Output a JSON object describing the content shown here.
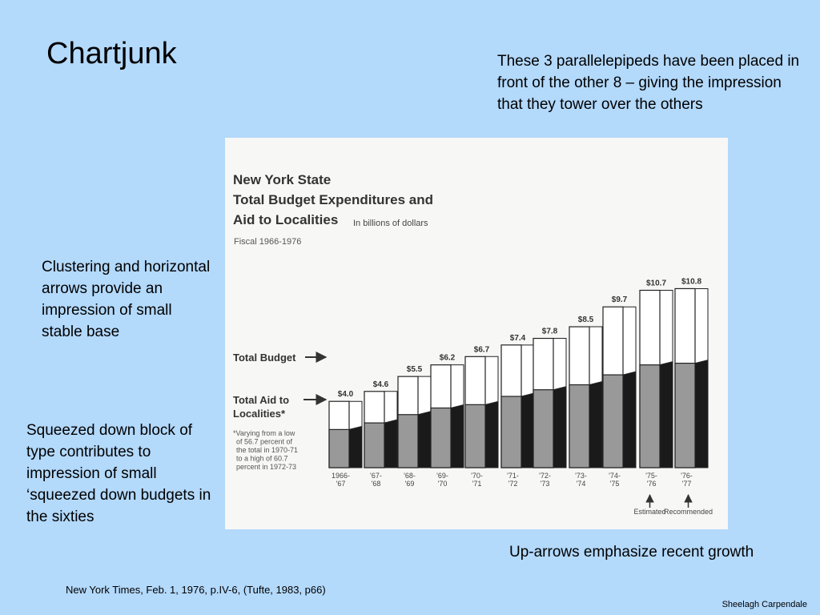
{
  "slide": {
    "title": "Chartjunk",
    "note_top": "These 3 parallelepipeds have been placed in front of the other 8 – giving the impression that they tower over the others",
    "note_left": "Clustering and horizontal arrows provide an impression of small stable base",
    "note_bottom_left": "Squeezed down block of type contributes to impression of small ‘squeezed down budgets in the sixties",
    "note_arrows": "Up-arrows emphasize recent growth",
    "citation": "New York Times, Feb. 1, 1976, p.IV-6, (Tufte, 1983, p66)",
    "author": "Sheelagh Carpendale"
  },
  "chart_data": {
    "type": "bar",
    "title_lines": [
      "New York State",
      "Total Budget Expenditures and",
      "Aid to Localities"
    ],
    "unit": "In billions of dollars",
    "subtitle": "Fiscal 1966-1976",
    "series_labels": {
      "total": "Total Budget",
      "aid_line1": "Total Aid to",
      "aid_line2": "Localities*"
    },
    "footnote_lines": [
      "*Varying from a low",
      "of 56.7 percent of",
      "the total in 1970-71",
      "to a high of 60.7",
      "percent in 1972-73"
    ],
    "categories": [
      [
        "1966-",
        "'67"
      ],
      [
        "'67-",
        "'68"
      ],
      [
        "'68-",
        "'69"
      ],
      [
        "'69-",
        "'70"
      ],
      [
        "'70-",
        "'71"
      ],
      [
        "'71-",
        "'72"
      ],
      [
        "'72-",
        "'73"
      ],
      [
        "'73-",
        "'74"
      ],
      [
        "'74-",
        "'75"
      ],
      [
        "'75-",
        "'76"
      ],
      [
        "'76-",
        "'77"
      ]
    ],
    "value_labels": [
      "$4.0",
      "$4.6",
      "$5.5",
      "$6.2",
      "$6.7",
      "$7.4",
      "$7.8",
      "$8.5",
      "$9.7",
      "$10.7",
      "$10.8"
    ],
    "series": [
      {
        "values": [
          4.0,
          4.6,
          5.5,
          6.2,
          6.7,
          7.4,
          7.8,
          8.5,
          9.7,
          10.7,
          10.8
        ]
      },
      {
        "values": [
          2.3,
          2.7,
          3.2,
          3.6,
          3.8,
          4.3,
          4.7,
          5.0,
          5.6,
          6.2,
          6.3
        ]
      }
    ],
    "bottom_notes": [
      "Estimated",
      "Recommended"
    ],
    "colors": {
      "total": "#ffffff",
      "aid": "#999999",
      "aid_side": "#1a1a1a",
      "outline": "#222222"
    }
  }
}
